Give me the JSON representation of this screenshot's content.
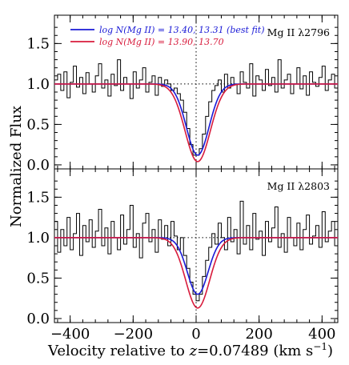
{
  "chart_data": {
    "type": "line",
    "xlabel_main": "Velocity relative to ",
    "xlabel_z": "z",
    "xlabel_rest": "=0.07489 (km s",
    "xlabel_exp": "−1",
    "xlabel_close": ")",
    "ylabel": "Normalized Flux",
    "xlim": [
      -450,
      450
    ],
    "x_ticks": [
      -400,
      -200,
      0,
      200,
      400
    ],
    "x_tick_labels": [
      "−400",
      "−200",
      "0",
      "200",
      "400"
    ],
    "grid": false,
    "legend_position": "top-left",
    "colors": {
      "best_fit": "#1a1ad6",
      "alt_fit": "#d81b3c",
      "data": "#000000",
      "reference": "#000000"
    },
    "legend": [
      {
        "label": "log N(Mg II) = 13.40, 13.31 (best fit)",
        "color": "#1a1ad6"
      },
      {
        "label": "log N(Mg II) = 13.90, 13.70",
        "color": "#d81b3c"
      }
    ],
    "panels": [
      {
        "label": "Mg II λ2796",
        "ylim": [
          -0.05,
          1.85
        ],
        "y_ticks": [
          0.0,
          0.5,
          1.0,
          1.5
        ],
        "y_tick_labels": [
          "0.0",
          "0.5",
          "1.0",
          "1.5"
        ],
        "series": [
          {
            "step_x": [
              -450,
              -440,
              -430,
              -420,
              -410,
              -400,
              -390,
              -380,
              -370,
              -360,
              -350,
              -340,
              -330,
              -320,
              -310,
              -300,
              -290,
              -280,
              -270,
              -260,
              -250,
              -240,
              -230,
              -220,
              -210,
              -200,
              -190,
              -180,
              -170,
              -160,
              -150,
              -140,
              -130,
              -120,
              -110,
              -100,
              -90,
              -80,
              -70,
              -60,
              -50,
              -40,
              -30,
              -20,
              -10,
              0,
              10,
              20,
              30,
              40,
              50,
              60,
              70,
              80,
              90,
              100,
              110,
              120,
              130,
              140,
              150,
              160,
              170,
              180,
              190,
              200,
              210,
              220,
              230,
              240,
              250,
              260,
              270,
              280,
              290,
              300,
              310,
              320,
              330,
              340,
              350,
              360,
              370,
              380,
              390,
              400,
              410,
              420,
              430,
              440
            ],
            "values": [
              1.05,
              1.12,
              0.92,
              1.15,
              0.83,
              1.02,
              1.22,
              0.96,
              1.08,
              0.88,
              1.14,
              1.0,
              0.9,
              1.1,
              1.25,
              0.95,
              1.05,
              0.85,
              1.12,
              0.98,
              1.3,
              0.92,
              1.08,
              1.0,
              0.82,
              1.15,
              0.95,
              1.05,
              1.2,
              0.9,
              1.02,
              1.1,
              0.86,
              1.08,
              0.97,
              1.05,
              1.0,
              0.92,
              0.95,
              0.88,
              0.8,
              0.65,
              0.45,
              0.25,
              0.12,
              0.12,
              0.2,
              0.38,
              0.6,
              0.78,
              0.92,
              0.98,
              1.05,
              0.9,
              1.12,
              0.95,
              1.08,
              1.0,
              0.88,
              1.15,
              1.02,
              0.95,
              1.25,
              0.85,
              1.1,
              1.05,
              0.92,
              1.18,
              0.98,
              1.08,
              0.9,
              1.3,
              0.95,
              1.05,
              1.12,
              0.88,
              1.0,
              1.2,
              0.94,
              1.1,
              0.86,
              1.15,
              1.02,
              0.97,
              1.08,
              1.22,
              0.92,
              1.05,
              1.12,
              0.95
            ]
          }
        ],
        "models": [
          {
            "name": "best fit",
            "min": 0.12,
            "center": 5,
            "sigma": 36
          },
          {
            "name": "alt",
            "min": 0.04,
            "center": 5,
            "sigma": 40
          }
        ]
      },
      {
        "label": "Mg II λ2803",
        "ylim": [
          -0.05,
          1.85
        ],
        "y_ticks": [
          0.0,
          0.5,
          1.0,
          1.5
        ],
        "y_tick_labels": [
          "0.0",
          "0.5",
          "1.0",
          "1.5"
        ],
        "series": [
          {
            "step_x": [
              -450,
              -440,
              -430,
              -420,
              -410,
              -400,
              -390,
              -380,
              -370,
              -360,
              -350,
              -340,
              -330,
              -320,
              -310,
              -300,
              -290,
              -280,
              -270,
              -260,
              -250,
              -240,
              -230,
              -220,
              -210,
              -200,
              -190,
              -180,
              -170,
              -160,
              -150,
              -140,
              -130,
              -120,
              -110,
              -100,
              -90,
              -80,
              -70,
              -60,
              -50,
              -40,
              -30,
              -20,
              -10,
              0,
              10,
              20,
              30,
              40,
              50,
              60,
              70,
              80,
              90,
              100,
              110,
              120,
              130,
              140,
              150,
              160,
              170,
              180,
              190,
              200,
              210,
              220,
              230,
              240,
              250,
              260,
              270,
              280,
              290,
              300,
              310,
              320,
              330,
              340,
              350,
              360,
              370,
              380,
              390,
              400,
              410,
              420,
              430,
              440
            ],
            "values": [
              1.2,
              0.82,
              1.1,
              0.9,
              1.25,
              0.85,
              1.05,
              1.3,
              0.78,
              1.15,
              0.95,
              1.22,
              0.88,
              1.08,
              1.35,
              0.9,
              1.12,
              0.8,
              1.2,
              1.0,
              0.85,
              1.28,
              0.92,
              1.1,
              1.4,
              0.88,
              1.05,
              0.75,
              1.18,
              1.3,
              0.95,
              1.1,
              0.82,
              1.22,
              0.98,
              1.15,
              0.9,
              1.2,
              1.02,
              0.85,
              1.0,
              0.78,
              0.62,
              0.45,
              0.3,
              0.22,
              0.3,
              0.52,
              0.72,
              0.88,
              1.05,
              0.92,
              1.18,
              1.0,
              0.85,
              1.25,
              0.95,
              1.1,
              0.8,
              1.45,
              0.92,
              1.15,
              0.85,
              1.3,
              0.98,
              1.08,
              0.78,
              1.2,
              0.95,
              1.12,
              1.38,
              0.88,
              1.05,
              0.82,
              1.25,
              1.0,
              0.9,
              1.18,
              0.85,
              1.1,
              1.28,
              0.92,
              1.02,
              1.15,
              0.88,
              1.32,
              0.95,
              1.08,
              1.2,
              0.9
            ]
          }
        ],
        "models": [
          {
            "name": "best fit",
            "min": 0.3,
            "center": 5,
            "sigma": 33
          },
          {
            "name": "alt",
            "min": 0.13,
            "center": 5,
            "sigma": 38
          }
        ]
      }
    ]
  }
}
